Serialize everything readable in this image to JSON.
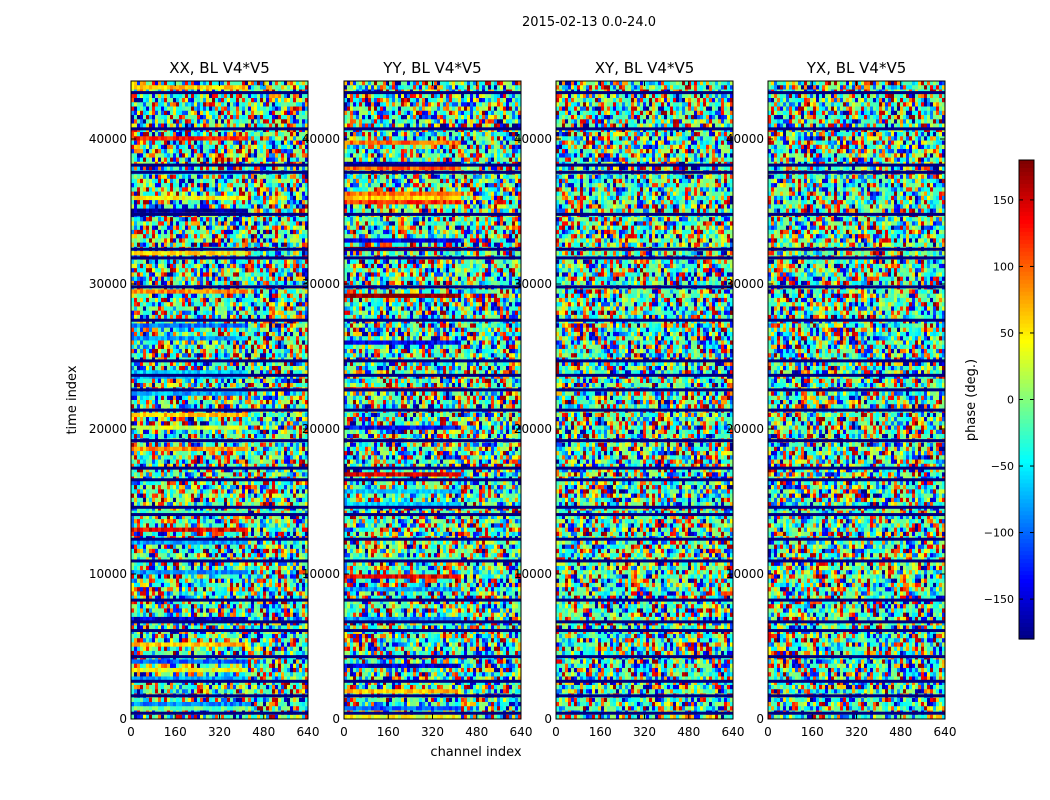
{
  "figure_title": "2015-02-13 0.0-24.0",
  "chart_data": {
    "type": "heatmap",
    "title": "2015-02-13 0.0-24.0",
    "xlabel": "channel index",
    "ylabel": "time index",
    "xlim": [
      0,
      640
    ],
    "ylim": [
      0,
      44000
    ],
    "xticks": [
      "0",
      "160",
      "320",
      "480",
      "640"
    ],
    "xtick_values": [
      0,
      160,
      320,
      480,
      640
    ],
    "yticks": [
      "0",
      "10000",
      "20000",
      "30000",
      "40000"
    ],
    "ytick_values": [
      0,
      10000,
      20000,
      30000,
      40000
    ],
    "grid": false,
    "panels": [
      {
        "name": "XX, BL V4*V5",
        "title": "XX, BL V4*V5"
      },
      {
        "name": "YY, BL V4*V5",
        "title": "YY, BL V4*V5"
      },
      {
        "name": "XY, BL V4*V5",
        "title": "XY, BL V4*V5"
      },
      {
        "name": "YX, BL V4*V5",
        "title": "YX, BL V4*V5"
      }
    ],
    "colorbar": {
      "label": "phase (deg.)",
      "colormap": "jet",
      "range": [
        -180,
        180
      ],
      "ticks": [
        "150",
        "100",
        "50",
        "0",
        "−50",
        "−100",
        "−150"
      ],
      "tick_values": [
        150,
        100,
        50,
        0,
        -50,
        -100,
        -150
      ]
    },
    "flag_bands_time_index": [
      400,
      1600,
      2600,
      4300,
      6100,
      6700,
      8200,
      10900,
      12400,
      14100,
      14600,
      16500,
      17300,
      19200,
      21300,
      22700,
      23700,
      24700,
      27500,
      29800,
      31800,
      32400,
      34800,
      37700,
      38200,
      40700,
      43200
    ]
  }
}
